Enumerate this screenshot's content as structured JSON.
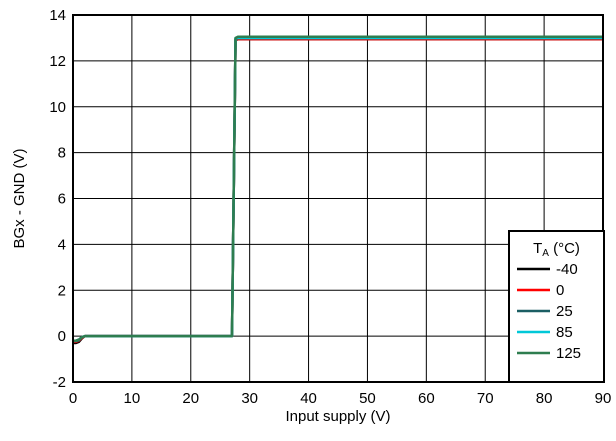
{
  "chart_data": {
    "type": "line",
    "title": "",
    "xlabel": "Input supply (V)",
    "ylabel": "BGx - GND (V)",
    "xlim": [
      0,
      90
    ],
    "ylim": [
      -2,
      14
    ],
    "x_ticks": [
      0,
      10,
      20,
      30,
      40,
      50,
      60,
      70,
      80,
      90
    ],
    "y_ticks": [
      -2,
      0,
      2,
      4,
      6,
      8,
      10,
      12,
      14
    ],
    "grid": true,
    "legend": {
      "placement": "bottom-right",
      "title_main": "T",
      "title_sub": "A",
      "title_rest": " (°C)"
    },
    "series": [
      {
        "name": "-40",
        "color": "#000000",
        "x": [
          0,
          0.5,
          1,
          1.5,
          2,
          10,
          20,
          27,
          27.6,
          28,
          60,
          90
        ],
        "y": [
          -0.3,
          -0.3,
          -0.25,
          -0.1,
          0,
          0,
          0,
          0,
          12.9,
          12.95,
          12.95,
          12.95
        ]
      },
      {
        "name": "0",
        "color": "#ff0000",
        "x": [
          0,
          0.5,
          1,
          1.5,
          2,
          10,
          20,
          27,
          27.6,
          28,
          60,
          90
        ],
        "y": [
          -0.25,
          -0.25,
          -0.2,
          -0.08,
          0,
          0,
          0,
          0,
          12.95,
          12.95,
          12.95,
          12.95
        ]
      },
      {
        "name": "25",
        "color": "#1b5e63",
        "x": [
          0,
          0.5,
          1,
          1.5,
          2,
          10,
          20,
          27,
          27.6,
          28,
          60,
          90
        ],
        "y": [
          -0.22,
          -0.22,
          -0.18,
          -0.05,
          0,
          0,
          0,
          0,
          12.95,
          13.0,
          13.0,
          13.0
        ]
      },
      {
        "name": "85",
        "color": "#00c8d8",
        "x": [
          0,
          0.5,
          1,
          1.5,
          2,
          10,
          20,
          27,
          27.6,
          28,
          60,
          90
        ],
        "y": [
          -0.2,
          -0.2,
          -0.15,
          -0.05,
          0,
          0,
          0,
          0,
          13.0,
          13.0,
          13.0,
          13.0
        ]
      },
      {
        "name": "125",
        "color": "#2e7d4f",
        "x": [
          0,
          0.5,
          1,
          1.5,
          2,
          10,
          20,
          27,
          27.6,
          28,
          60,
          90
        ],
        "y": [
          -0.2,
          -0.2,
          -0.15,
          -0.05,
          0,
          0,
          0,
          0,
          13.0,
          13.05,
          13.05,
          13.05
        ]
      }
    ]
  }
}
